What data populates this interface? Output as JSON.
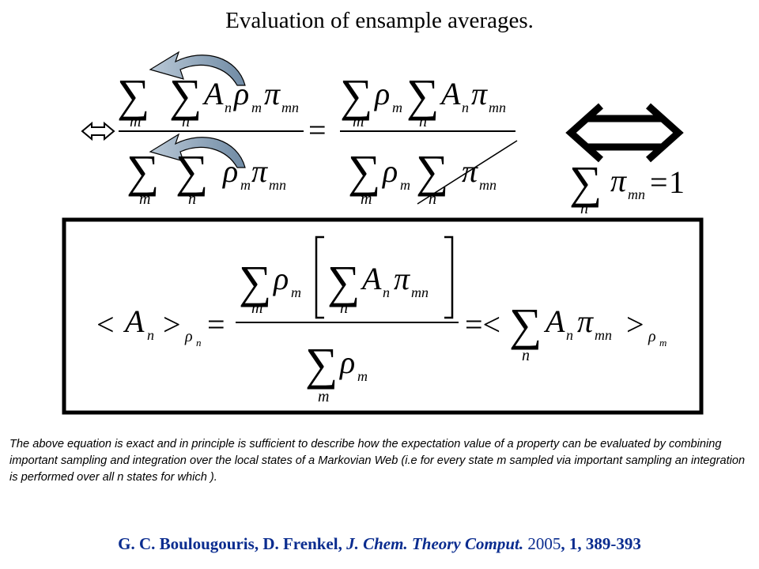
{
  "slide": {
    "title": "Evaluation of ensample averages."
  },
  "equation": {
    "operator_sum": "∑",
    "index_m": "m",
    "index_n": "n",
    "A": "A",
    "rho": "ρ",
    "pi": "π",
    "sub_mn": "mn",
    "equals": "=",
    "lt": "<",
    "gt": ">",
    "one": "1",
    "lhs_equals": "=<"
  },
  "note": {
    "text": "The above equation is exact and in principle is sufficient to describe how the expectation value of a property can be evaluated by combining important sampling and integration over the local states of a Markovian Web (i.e for every state m sampled via important sampling an integration is performed over all n states for which )."
  },
  "citation": {
    "authors": "G. C. Boulougouris, D. Frenkel,",
    "journal": "J. Chem. Theory Comput.",
    "year": "2005",
    "volume_pages": ", 1, 389-393"
  },
  "colors": {
    "citation": "#0a2c8f",
    "arrow_fill": "#8aa1b8"
  }
}
